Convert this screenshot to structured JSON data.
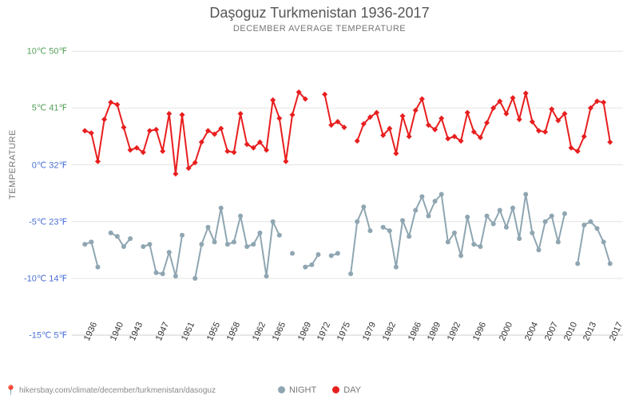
{
  "title": "Daşoguz Turkmenistan 1936-2017",
  "subtitle": "December average temperature",
  "yaxis_label": "Temperature",
  "attribution": "hikersbay.com/climate/december/turkmenistan/dasoguz",
  "chart": {
    "type": "line",
    "background_color": "#ffffff",
    "grid_color": "#e4e4e4",
    "axis_line_color": "#cfcfcf",
    "title_fontsize": 18,
    "subtitle_fontsize": 11,
    "tick_fontsize": 11,
    "x_range": [
      1934,
      2019
    ],
    "y_range_c": [
      -15,
      11
    ],
    "y_ticks": [
      {
        "c": -15,
        "f": 5,
        "color": "#4a6fd6"
      },
      {
        "c": -10,
        "f": 14,
        "color": "#4a6fd6"
      },
      {
        "c": -5,
        "f": 23,
        "color": "#4a6fd6"
      },
      {
        "c": 0,
        "f": 32,
        "color": "#4a6fd6"
      },
      {
        "c": 5,
        "f": 41,
        "color": "#56a05a"
      },
      {
        "c": 10,
        "f": 50,
        "color": "#56a05a"
      }
    ],
    "x_ticks": [
      1936,
      1940,
      1943,
      1947,
      1951,
      1955,
      1958,
      1962,
      1965,
      1969,
      1972,
      1975,
      1979,
      1982,
      1986,
      1989,
      1992,
      1996,
      2000,
      2004,
      2007,
      2010,
      2013,
      2017
    ],
    "series": [
      {
        "name": "DAY",
        "color": "#e81e1e",
        "marker": "diamond",
        "line_width": 2,
        "marker_size": 7,
        "segments": [
          [
            [
              1936,
              3.0
            ],
            [
              1937,
              2.8
            ],
            [
              1938,
              0.3
            ],
            [
              1939,
              4.0
            ],
            [
              1940,
              5.5
            ],
            [
              1941,
              5.3
            ],
            [
              1942,
              3.3
            ],
            [
              1943,
              1.3
            ],
            [
              1944,
              1.5
            ],
            [
              1945,
              1.1
            ],
            [
              1946,
              3.0
            ],
            [
              1947,
              3.1
            ],
            [
              1948,
              1.2
            ],
            [
              1949,
              4.5
            ],
            [
              1950,
              -0.8
            ],
            [
              1951,
              4.4
            ],
            [
              1952,
              -0.3
            ],
            [
              1953,
              0.2
            ],
            [
              1954,
              2.0
            ],
            [
              1955,
              3.0
            ],
            [
              1956,
              2.7
            ],
            [
              1957,
              3.2
            ],
            [
              1958,
              1.2
            ],
            [
              1959,
              1.1
            ],
            [
              1960,
              4.5
            ],
            [
              1961,
              1.8
            ],
            [
              1962,
              1.5
            ],
            [
              1963,
              2.0
            ],
            [
              1964,
              1.3
            ],
            [
              1965,
              5.7
            ],
            [
              1966,
              4.1
            ],
            [
              1967,
              0.3
            ],
            [
              1968,
              4.4
            ],
            [
              1969,
              6.4
            ],
            [
              1970,
              5.8
            ]
          ],
          [
            [
              1973,
              6.2
            ],
            [
              1974,
              3.5
            ],
            [
              1975,
              3.8
            ],
            [
              1976,
              3.3
            ]
          ],
          [
            [
              1978,
              2.1
            ],
            [
              1979,
              3.6
            ],
            [
              1980,
              4.2
            ],
            [
              1981,
              4.6
            ],
            [
              1982,
              2.6
            ],
            [
              1983,
              3.2
            ],
            [
              1984,
              1.0
            ],
            [
              1985,
              4.3
            ],
            [
              1986,
              2.5
            ],
            [
              1987,
              4.8
            ],
            [
              1988,
              5.8
            ],
            [
              1989,
              3.5
            ],
            [
              1990,
              3.1
            ],
            [
              1991,
              4.1
            ],
            [
              1992,
              2.3
            ],
            [
              1993,
              2.5
            ],
            [
              1994,
              2.1
            ],
            [
              1995,
              4.6
            ],
            [
              1996,
              2.9
            ],
            [
              1997,
              2.4
            ],
            [
              1998,
              3.7
            ],
            [
              1999,
              5.0
            ],
            [
              2000,
              5.6
            ],
            [
              2001,
              4.5
            ],
            [
              2002,
              5.9
            ],
            [
              2003,
              4.0
            ],
            [
              2004,
              6.3
            ],
            [
              2005,
              3.8
            ],
            [
              2006,
              3.0
            ],
            [
              2007,
              2.9
            ],
            [
              2008,
              4.9
            ],
            [
              2009,
              3.9
            ],
            [
              2010,
              4.5
            ],
            [
              2011,
              1.5
            ],
            [
              2012,
              1.2
            ],
            [
              2013,
              2.5
            ],
            [
              2014,
              5.0
            ],
            [
              2015,
              5.6
            ],
            [
              2016,
              5.5
            ],
            [
              2017,
              2.0
            ]
          ]
        ]
      },
      {
        "name": "NIGHT",
        "color": "#8fa6b2",
        "marker": "circle",
        "line_width": 2,
        "marker_size": 6,
        "segments": [
          [
            [
              1936,
              -7.0
            ],
            [
              1937,
              -6.8
            ],
            [
              1938,
              -9.0
            ]
          ],
          [
            [
              1940,
              -6.0
            ],
            [
              1941,
              -6.3
            ],
            [
              1942,
              -7.2
            ],
            [
              1943,
              -6.5
            ]
          ],
          [
            [
              1945,
              -7.2
            ],
            [
              1946,
              -7.0
            ],
            [
              1947,
              -9.5
            ],
            [
              1948,
              -9.6
            ],
            [
              1949,
              -7.7
            ],
            [
              1950,
              -9.8
            ],
            [
              1951,
              -6.2
            ]
          ],
          [
            [
              1953,
              -10.0
            ],
            [
              1954,
              -7.0
            ],
            [
              1955,
              -5.5
            ],
            [
              1956,
              -6.8
            ],
            [
              1957,
              -3.8
            ],
            [
              1958,
              -7.0
            ],
            [
              1959,
              -6.8
            ],
            [
              1960,
              -4.5
            ],
            [
              1961,
              -7.2
            ],
            [
              1962,
              -7.0
            ],
            [
              1963,
              -6.0
            ],
            [
              1964,
              -9.8
            ],
            [
              1965,
              -5.0
            ],
            [
              1966,
              -6.2
            ]
          ],
          [
            [
              1968,
              -7.8
            ]
          ],
          [
            [
              1970,
              -9.0
            ],
            [
              1971,
              -8.8
            ],
            [
              1972,
              -7.9
            ]
          ],
          [
            [
              1974,
              -8.0
            ],
            [
              1975,
              -7.8
            ]
          ],
          [
            [
              1977,
              -9.6
            ],
            [
              1978,
              -5.0
            ],
            [
              1979,
              -3.7
            ],
            [
              1980,
              -5.8
            ]
          ],
          [
            [
              1982,
              -5.5
            ],
            [
              1983,
              -5.8
            ],
            [
              1984,
              -9.0
            ],
            [
              1985,
              -4.9
            ],
            [
              1986,
              -6.3
            ],
            [
              1987,
              -4.0
            ],
            [
              1988,
              -2.8
            ],
            [
              1989,
              -4.5
            ],
            [
              1990,
              -3.2
            ],
            [
              1991,
              -2.6
            ],
            [
              1992,
              -6.8
            ],
            [
              1993,
              -6.0
            ],
            [
              1994,
              -8.0
            ],
            [
              1995,
              -4.6
            ],
            [
              1996,
              -7.0
            ],
            [
              1997,
              -7.2
            ],
            [
              1998,
              -4.5
            ],
            [
              1999,
              -5.2
            ],
            [
              2000,
              -4.0
            ],
            [
              2001,
              -5.5
            ],
            [
              2002,
              -3.8
            ],
            [
              2003,
              -6.5
            ],
            [
              2004,
              -2.6
            ],
            [
              2005,
              -6.0
            ],
            [
              2006,
              -7.5
            ],
            [
              2007,
              -5.0
            ],
            [
              2008,
              -4.5
            ],
            [
              2009,
              -6.8
            ],
            [
              2010,
              -4.3
            ]
          ],
          [
            [
              2012,
              -8.7
            ],
            [
              2013,
              -5.3
            ],
            [
              2014,
              -5.0
            ],
            [
              2015,
              -5.6
            ],
            [
              2016,
              -6.8
            ],
            [
              2017,
              -8.7
            ]
          ]
        ]
      }
    ],
    "legend": {
      "items": [
        {
          "label": "NIGHT",
          "color": "#8fa6b2"
        },
        {
          "label": "DAY",
          "color": "#e81e1e"
        }
      ]
    }
  }
}
